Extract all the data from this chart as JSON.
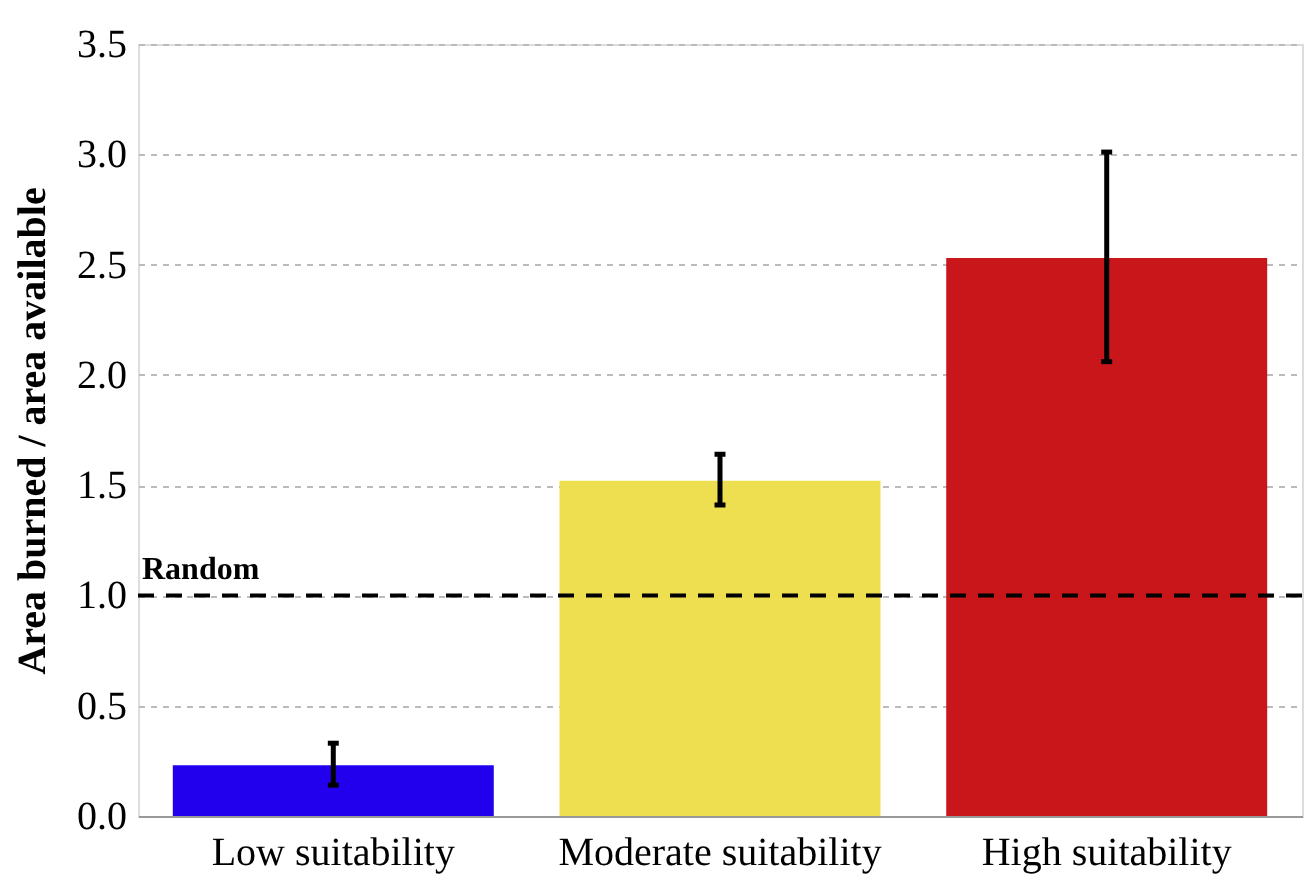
{
  "chart_data": {
    "type": "bar",
    "ylabel": "Area burned / area available",
    "categories": [
      "Low suitability",
      "Moderate suitability",
      "High suitability"
    ],
    "values": [
      0.23,
      1.52,
      2.53
    ],
    "colors": [
      "#2200ee",
      "#eedf50",
      "#c8161b"
    ],
    "errors": [
      [
        0.14,
        0.33
      ],
      [
        1.41,
        1.64
      ],
      [
        2.06,
        3.01
      ]
    ],
    "ylim": [
      0,
      3.5
    ],
    "yticks": [
      {
        "value": 0,
        "label": "0.0"
      },
      0.5,
      {
        "value": 1,
        "label": "1.0"
      },
      1.5,
      {
        "value": 2,
        "label": "2.0"
      },
      2.5,
      {
        "value": 3,
        "label": "3.0"
      },
      3.5
    ],
    "grid": "y",
    "ref_lines": [
      {
        "axis": "y",
        "value": 1,
        "label": "Random",
        "color": "#000000",
        "line_style": "dashed"
      }
    ]
  }
}
